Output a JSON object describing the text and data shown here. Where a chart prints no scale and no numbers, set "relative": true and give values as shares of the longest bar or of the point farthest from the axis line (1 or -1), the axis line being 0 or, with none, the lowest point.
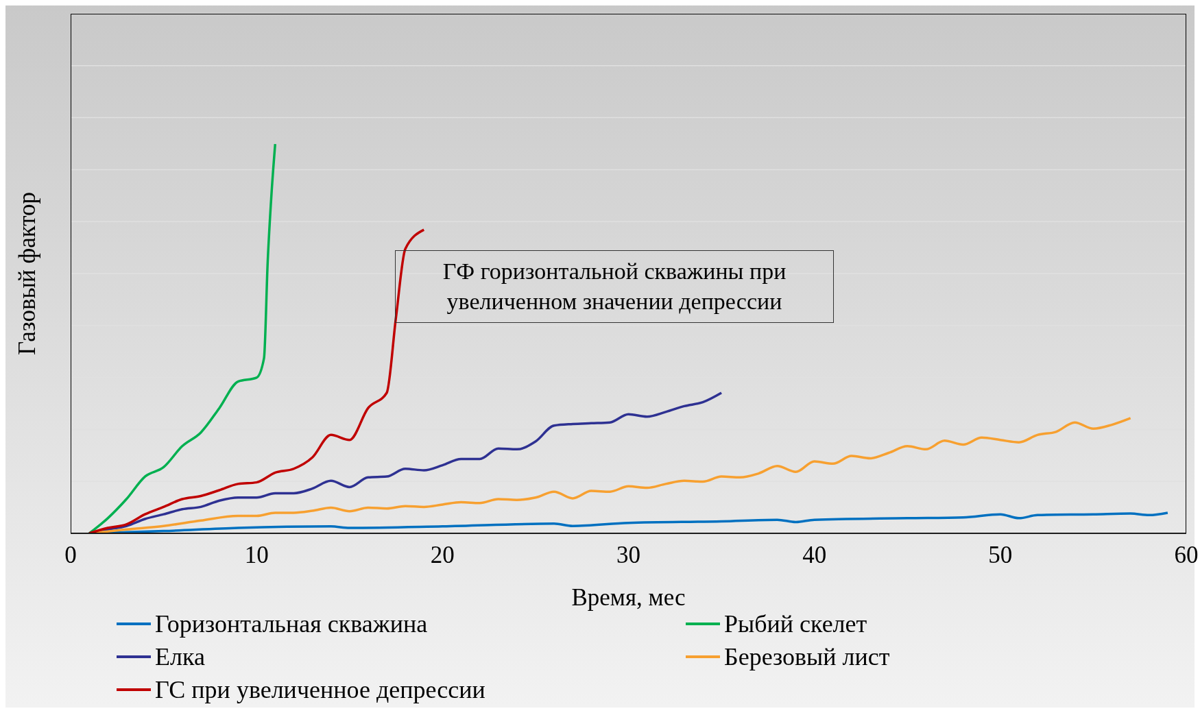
{
  "chart_data": {
    "type": "line",
    "relative": true,
    "xlabel": "Время, мес",
    "ylabel": "Газовый фактор",
    "xlim": [
      0,
      60
    ],
    "xticks": [
      0,
      10,
      20,
      30,
      40,
      50,
      60
    ],
    "grid": "y",
    "legend": "bottom",
    "marker": "none",
    "line_style": "solid",
    "annotations": [
      "ГФ горизонтальной скважины при увеличенном значении депрессии"
    ],
    "series": [
      {
        "name": "Горизонтальная скважина",
        "color": "#0070c0",
        "x": [
          1,
          5,
          9,
          14,
          15,
          20,
          26,
          27,
          30,
          35,
          38,
          39,
          40,
          45,
          48,
          50,
          51,
          52,
          55,
          57,
          58,
          59
        ],
        "values": [
          0,
          0.006,
          0.014,
          0.018,
          0.014,
          0.018,
          0.025,
          0.019,
          0.027,
          0.031,
          0.035,
          0.029,
          0.035,
          0.039,
          0.041,
          0.049,
          0.039,
          0.047,
          0.049,
          0.051,
          0.047,
          0.053
        ]
      },
      {
        "name": "Рыбий скелет",
        "color": "#00b050",
        "x": [
          1,
          2,
          3,
          4,
          5,
          6,
          7,
          8,
          9,
          10,
          10.4,
          10.6,
          10.8,
          11
        ],
        "values": [
          0,
          0.039,
          0.088,
          0.146,
          0.17,
          0.224,
          0.259,
          0.322,
          0.39,
          0.4,
          0.45,
          0.7,
          0.87,
          1
        ]
      },
      {
        "name": "Елка",
        "color": "#2e3192",
        "x": [
          1,
          2,
          3,
          4,
          5,
          6,
          7,
          8,
          9,
          10,
          11,
          12,
          13,
          14,
          15,
          16,
          17,
          18,
          19,
          20,
          21,
          22,
          23,
          24,
          25,
          26,
          27,
          28,
          29,
          30,
          31,
          32,
          33,
          34,
          35
        ],
        "values": [
          0,
          0.01,
          0.019,
          0.037,
          0.049,
          0.062,
          0.068,
          0.084,
          0.092,
          0.092,
          0.103,
          0.103,
          0.115,
          0.135,
          0.119,
          0.144,
          0.146,
          0.166,
          0.162,
          0.175,
          0.191,
          0.191,
          0.218,
          0.216,
          0.236,
          0.277,
          0.281,
          0.283,
          0.285,
          0.306,
          0.3,
          0.312,
          0.327,
          0.337,
          0.361
        ]
      },
      {
        "name": "Березовый лист",
        "color": "#f7a030",
        "x": [
          1,
          3,
          5,
          7,
          9,
          10,
          11,
          12,
          13,
          14,
          15,
          16,
          17,
          18,
          19,
          20,
          21,
          22,
          23,
          24,
          25,
          26,
          27,
          28,
          29,
          30,
          31,
          32,
          33,
          34,
          35,
          36,
          37,
          38,
          39,
          40,
          41,
          42,
          43,
          44,
          45,
          46,
          47,
          48,
          49,
          50,
          51,
          52,
          53,
          54,
          55,
          56,
          57
        ],
        "values": [
          0,
          0.01,
          0.019,
          0.033,
          0.045,
          0.045,
          0.053,
          0.053,
          0.058,
          0.066,
          0.057,
          0.066,
          0.064,
          0.07,
          0.068,
          0.074,
          0.08,
          0.078,
          0.088,
          0.086,
          0.092,
          0.107,
          0.09,
          0.109,
          0.107,
          0.121,
          0.117,
          0.127,
          0.135,
          0.133,
          0.146,
          0.144,
          0.154,
          0.173,
          0.158,
          0.185,
          0.179,
          0.199,
          0.193,
          0.207,
          0.224,
          0.216,
          0.238,
          0.228,
          0.246,
          0.24,
          0.234,
          0.253,
          0.261,
          0.285,
          0.269,
          0.279,
          0.296
        ]
      },
      {
        "name": "ГС при увеличенное депрессии",
        "color": "#c00000",
        "x": [
          1,
          2,
          3,
          4,
          5,
          6,
          7,
          8,
          9,
          10,
          11,
          12,
          13,
          14,
          15,
          16,
          17,
          17.5,
          18,
          19
        ],
        "values": [
          0,
          0.014,
          0.023,
          0.049,
          0.068,
          0.088,
          0.096,
          0.111,
          0.127,
          0.131,
          0.156,
          0.166,
          0.195,
          0.253,
          0.24,
          0.322,
          0.361,
          0.556,
          0.731,
          0.78
        ]
      }
    ]
  }
}
